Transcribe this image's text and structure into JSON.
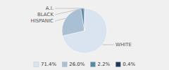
{
  "chart_data": {
    "type": "pie",
    "categories": [
      "WHITE",
      "HISPANIC",
      "BLACK",
      "A.I."
    ],
    "values": [
      71.4,
      26.0,
      2.2,
      0.4
    ],
    "value_labels": [
      "71.4%",
      "26.0%",
      "2.2%",
      "0.4%"
    ],
    "colors": [
      "#d9e4f0",
      "#a8bfd4",
      "#5a89a8",
      "#1e3a5a"
    ],
    "legend": "bottom"
  }
}
